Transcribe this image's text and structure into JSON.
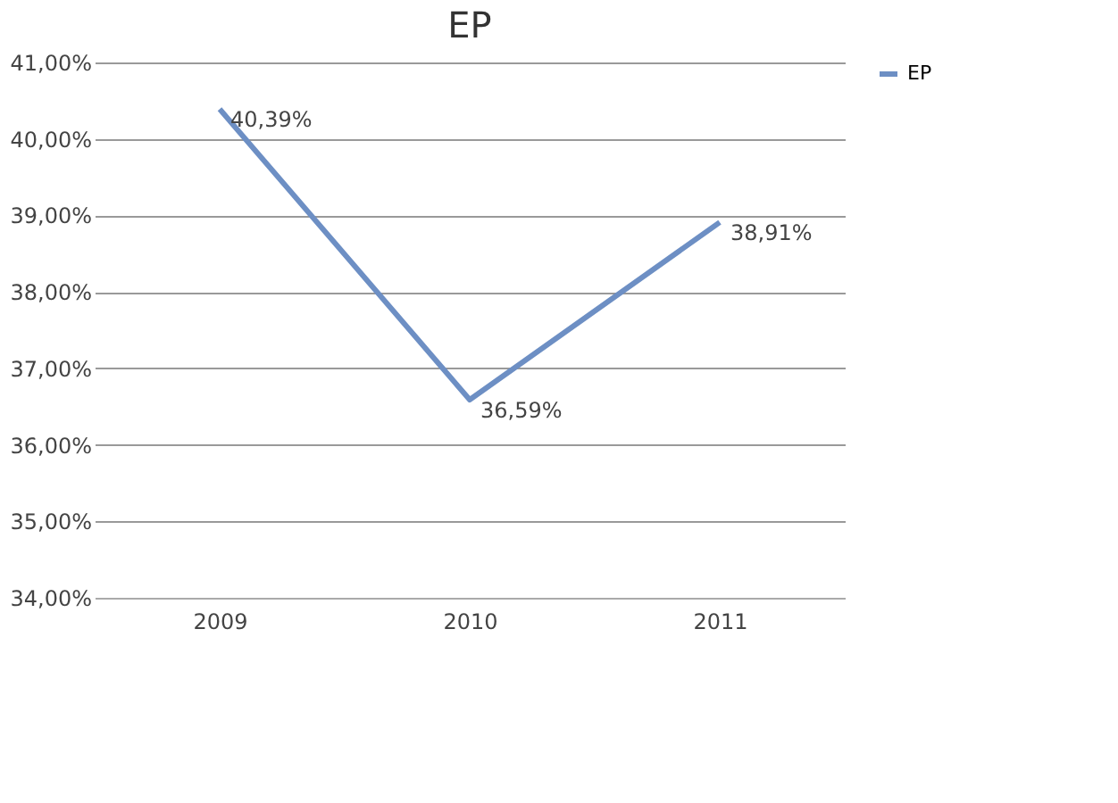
{
  "chart_data": {
    "type": "line",
    "title": "EP",
    "categories": [
      "2009",
      "2010",
      "2011"
    ],
    "series": [
      {
        "name": "EP",
        "color": "#6d8fc4",
        "values": [
          40.39,
          36.59,
          38.91
        ],
        "value_labels": [
          "40,39%",
          "36,59%",
          "38,91%"
        ]
      }
    ],
    "ylim": [
      34,
      41
    ],
    "yticks": [
      {
        "value": 34,
        "label": "34,00%"
      },
      {
        "value": 35,
        "label": "35,00%"
      },
      {
        "value": 36,
        "label": "36,00%"
      },
      {
        "value": 37,
        "label": "37,00%"
      },
      {
        "value": 38,
        "label": "38,00%"
      },
      {
        "value": 39,
        "label": "39,00%"
      },
      {
        "value": 40,
        "label": "40,00%"
      },
      {
        "value": 41,
        "label": "41,00%"
      }
    ],
    "grid": "y",
    "legend": "right"
  }
}
